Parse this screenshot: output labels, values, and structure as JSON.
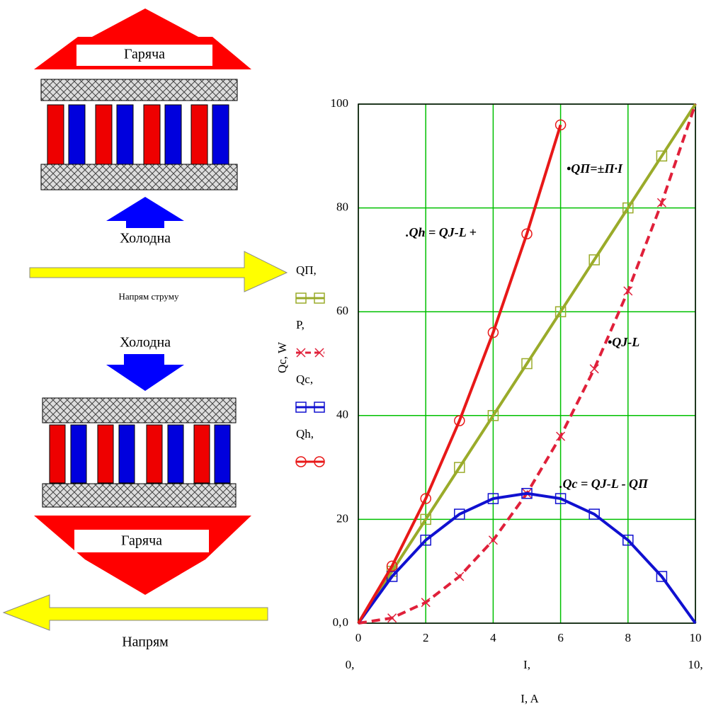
{
  "chart_data": {
    "type": "line",
    "x_label": "I, A",
    "y_label": "Qc, W",
    "x": [
      0,
      1,
      2,
      3,
      4,
      5,
      6,
      7,
      8,
      9,
      10
    ],
    "series": [
      {
        "name": "QП,",
        "color": "#9aab2a",
        "dash": false,
        "marker": "square",
        "values": [
          0,
          10,
          20,
          30,
          40,
          50,
          60,
          70,
          80,
          90,
          100
        ]
      },
      {
        "name": "P,",
        "color": "#e0203a",
        "dash": true,
        "marker": "cross",
        "values": [
          0,
          1,
          4,
          9,
          16,
          25,
          36,
          49,
          64,
          81,
          100
        ]
      },
      {
        "name": "Qc,",
        "color": "#1010d0",
        "dash": false,
        "marker": "square",
        "values": [
          0,
          9,
          16,
          21,
          24,
          25,
          24,
          21,
          16,
          9,
          0
        ]
      },
      {
        "name": "Qh,",
        "color": "#e81818",
        "dash": false,
        "marker": "circle",
        "values": [
          0,
          11,
          24,
          39,
          56,
          75,
          96,
          null,
          null,
          null,
          null
        ]
      }
    ],
    "xlim": [
      0,
      10
    ],
    "ylim": [
      0,
      100
    ],
    "xticks": [
      0,
      2,
      4,
      6,
      8,
      10
    ],
    "yticks": [
      0,
      20,
      40,
      60,
      80,
      100
    ],
    "grid": true,
    "grid_color": "#00c000",
    "axis_limit_labels": [
      "0,",
      "I,",
      "10,",
      "0,"
    ],
    "annotations": [
      "•QП=±П·I",
      ".Qh = QJ-L +",
      "•QJ-L",
      ".Qc = QJ-L - QП"
    ]
  },
  "diagram": {
    "top_hot": "Гаряча",
    "top_cold": "Холодна",
    "current_dir": "Напрям струму",
    "bottom_cold": "Холодна",
    "bottom_hot": "Гаряча",
    "bottom_dir": "Напрям"
  }
}
